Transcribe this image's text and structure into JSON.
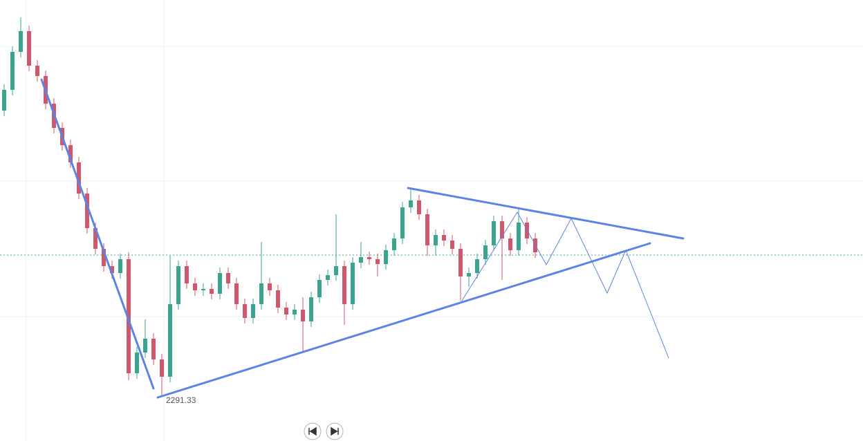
{
  "chart_data": {
    "type": "candlestick",
    "ylim": [
      2228,
      2866
    ],
    "up_color": "#3aa58f",
    "down_color": "#d0566b",
    "open": [
      2706,
      2736,
      2791,
      2821,
      2771,
      2756,
      2716,
      2681,
      2656,
      2631,
      2586,
      2536,
      2506,
      2481,
      2471,
      2491,
      2326,
      2356,
      2376,
      2346,
      2321,
      2426,
      2481,
      2456,
      2446,
      2448,
      2441,
      2471,
      2456,
      2426,
      2406,
      2426,
      2456,
      2446,
      2421,
      2411,
      2418,
      2401,
      2436,
      2461,
      2468,
      2481,
      2426,
      2486,
      2494,
      2491,
      2484,
      2504,
      2521,
      2566,
      2576,
      2556,
      2511,
      2526,
      2518,
      2506,
      2466,
      2471,
      2491,
      2511,
      2546,
      2521,
      2504,
      2544,
      2521
    ],
    "high": [
      2744,
      2799,
      2841,
      2829,
      2779,
      2764,
      2724,
      2689,
      2664,
      2639,
      2594,
      2544,
      2514,
      2489,
      2499,
      2501,
      2364,
      2404,
      2384,
      2354,
      2496,
      2489,
      2489,
      2464,
      2456,
      2456,
      2479,
      2479,
      2464,
      2434,
      2434,
      2516,
      2464,
      2454,
      2429,
      2426,
      2436,
      2444,
      2469,
      2476,
      2556,
      2489,
      2494,
      2516,
      2502,
      2499,
      2512,
      2529,
      2574,
      2594,
      2584,
      2564,
      2534,
      2534,
      2526,
      2514,
      2479,
      2499,
      2519,
      2554,
      2554,
      2529,
      2566,
      2552,
      2529
    ],
    "low": [
      2698,
      2728,
      2783,
      2763,
      2748,
      2708,
      2673,
      2648,
      2623,
      2578,
      2528,
      2498,
      2473,
      2463,
      2463,
      2316,
      2318,
      2348,
      2338,
      2291.33,
      2313,
      2418,
      2448,
      2438,
      2438,
      2433,
      2433,
      2448,
      2418,
      2398,
      2398,
      2418,
      2438,
      2413,
      2403,
      2403,
      2356,
      2393,
      2428,
      2453,
      2460,
      2396,
      2418,
      2478,
      2483,
      2466,
      2476,
      2496,
      2513,
      2558,
      2548,
      2496,
      2496,
      2510,
      2498,
      2431,
      2451,
      2463,
      2483,
      2503,
      2461,
      2496,
      2496,
      2513,
      2493
    ],
    "close": [
      2736,
      2791,
      2821,
      2771,
      2756,
      2716,
      2681,
      2656,
      2631,
      2586,
      2536,
      2506,
      2481,
      2471,
      2491,
      2326,
      2356,
      2376,
      2346,
      2321,
      2426,
      2481,
      2456,
      2446,
      2448,
      2441,
      2471,
      2456,
      2426,
      2406,
      2426,
      2456,
      2446,
      2421,
      2411,
      2418,
      2401,
      2436,
      2461,
      2468,
      2481,
      2426,
      2486,
      2494,
      2491,
      2484,
      2504,
      2521,
      2566,
      2576,
      2556,
      2511,
      2526,
      2518,
      2506,
      2466,
      2471,
      2491,
      2511,
      2546,
      2521,
      2504,
      2544,
      2521,
      2501
    ]
  }
}
